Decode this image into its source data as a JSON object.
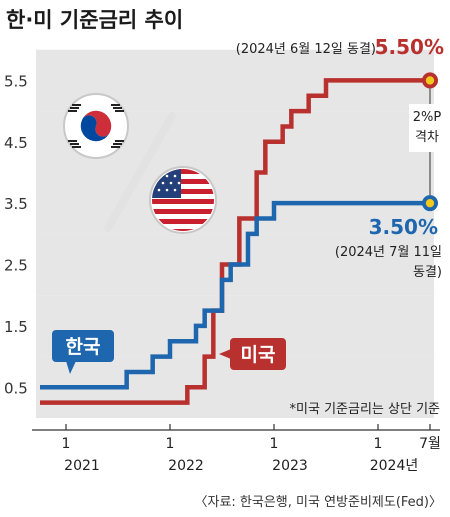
{
  "chart_data": {
    "type": "line",
    "title": "한·미 기준금리 추이",
    "note": "*미국 기준금리는 상단 기준",
    "source": "〈자료: 한국은행, 미국 연방준비제도(Fed)〉",
    "yticks": [
      {
        "value": 0.5,
        "label": "0.5"
      },
      {
        "value": 1.5,
        "label": "1.5"
      },
      {
        "value": 2.5,
        "label": "2.5"
      },
      {
        "value": 3.5,
        "label": "3.5"
      },
      {
        "value": 4.5,
        "label": "4.5"
      },
      {
        "value": 5.5,
        "label": "5.5"
      }
    ],
    "ylim": [
      0,
      5.8
    ],
    "xlim": [
      "2020-10",
      "2024-07"
    ],
    "xticks": [
      {
        "date": "2021-01",
        "month": "1",
        "year": "2021"
      },
      {
        "date": "2022-01",
        "month": "1",
        "year": "2022"
      },
      {
        "date": "2023-01",
        "month": "1",
        "year": "2023"
      },
      {
        "date": "2024-01",
        "month": "1",
        "year": "2024년"
      },
      {
        "date": "2024-07",
        "month": "7월",
        "year": ""
      }
    ],
    "series": [
      {
        "name": "미국",
        "color": "#b8312f",
        "points": [
          [
            "2020-10",
            0.25
          ],
          [
            "2022-03",
            0.5
          ],
          [
            "2022-05",
            1.0
          ],
          [
            "2022-06",
            1.75
          ],
          [
            "2022-07",
            2.5
          ],
          [
            "2022-09",
            3.25
          ],
          [
            "2022-11",
            4.0
          ],
          [
            "2022-12",
            4.5
          ],
          [
            "2023-02",
            4.75
          ],
          [
            "2023-03",
            5.0
          ],
          [
            "2023-05",
            5.25
          ],
          [
            "2023-07",
            5.5
          ],
          [
            "2024-07",
            5.5
          ]
        ]
      },
      {
        "name": "한국",
        "color": "#1e66ad",
        "points": [
          [
            "2020-10",
            0.5
          ],
          [
            "2021-08",
            0.75
          ],
          [
            "2021-11",
            1.0
          ],
          [
            "2022-01",
            1.25
          ],
          [
            "2022-04",
            1.5
          ],
          [
            "2022-05",
            1.75
          ],
          [
            "2022-07",
            2.25
          ],
          [
            "2022-08",
            2.5
          ],
          [
            "2022-10",
            3.0
          ],
          [
            "2022-11",
            3.25
          ],
          [
            "2023-01",
            3.5
          ],
          [
            "2024-07",
            3.5
          ]
        ]
      }
    ],
    "annotations": {
      "us_date": "(2024년 6월 12일 동결)",
      "us_value": "5.50%",
      "kr_value": "3.50%",
      "kr_date_line1": "(2024년 7월 11일",
      "kr_date_line2": "동결)",
      "gap_line1": "2%P",
      "gap_line2": "격차"
    },
    "colors": {
      "us": "#b8312f",
      "kr": "#1e66ad",
      "band": "#e6e6e6",
      "marker": "#f2c81b"
    }
  }
}
